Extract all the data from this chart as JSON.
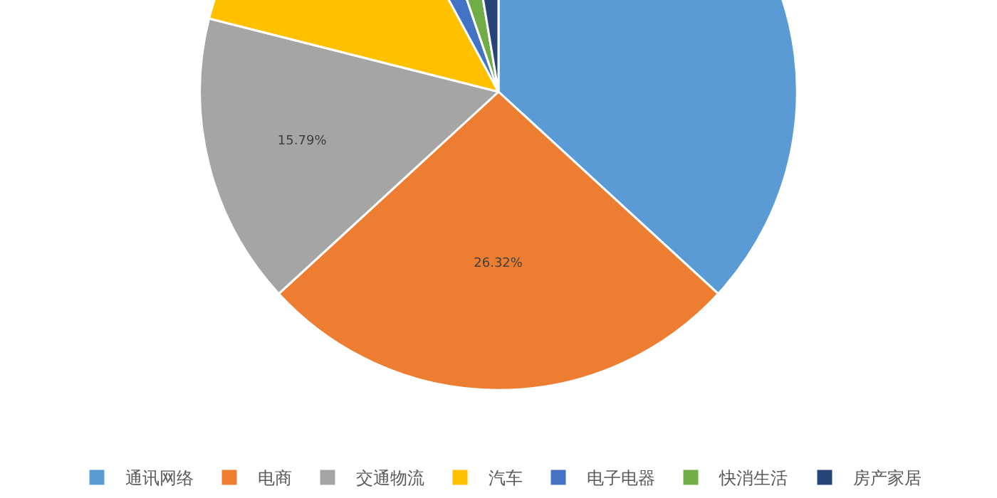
{
  "chart_data": {
    "type": "pie",
    "categories": [
      "通讯网络",
      "电商",
      "交通物流",
      "汽车",
      "电子电器",
      "快消生活",
      "房产家居"
    ],
    "values": [
      36.84,
      26.32,
      15.79,
      13.16,
      2.63,
      2.63,
      2.63
    ],
    "value_labels": [
      null,
      "26.32%",
      "15.79%",
      null,
      null,
      null,
      null
    ],
    "colors": [
      "#5b9bd5",
      "#ed7d31",
      "#a5a5a5",
      "#ffc000",
      "#4472c4",
      "#70ad47",
      "#264478"
    ],
    "legend": "bottom"
  }
}
